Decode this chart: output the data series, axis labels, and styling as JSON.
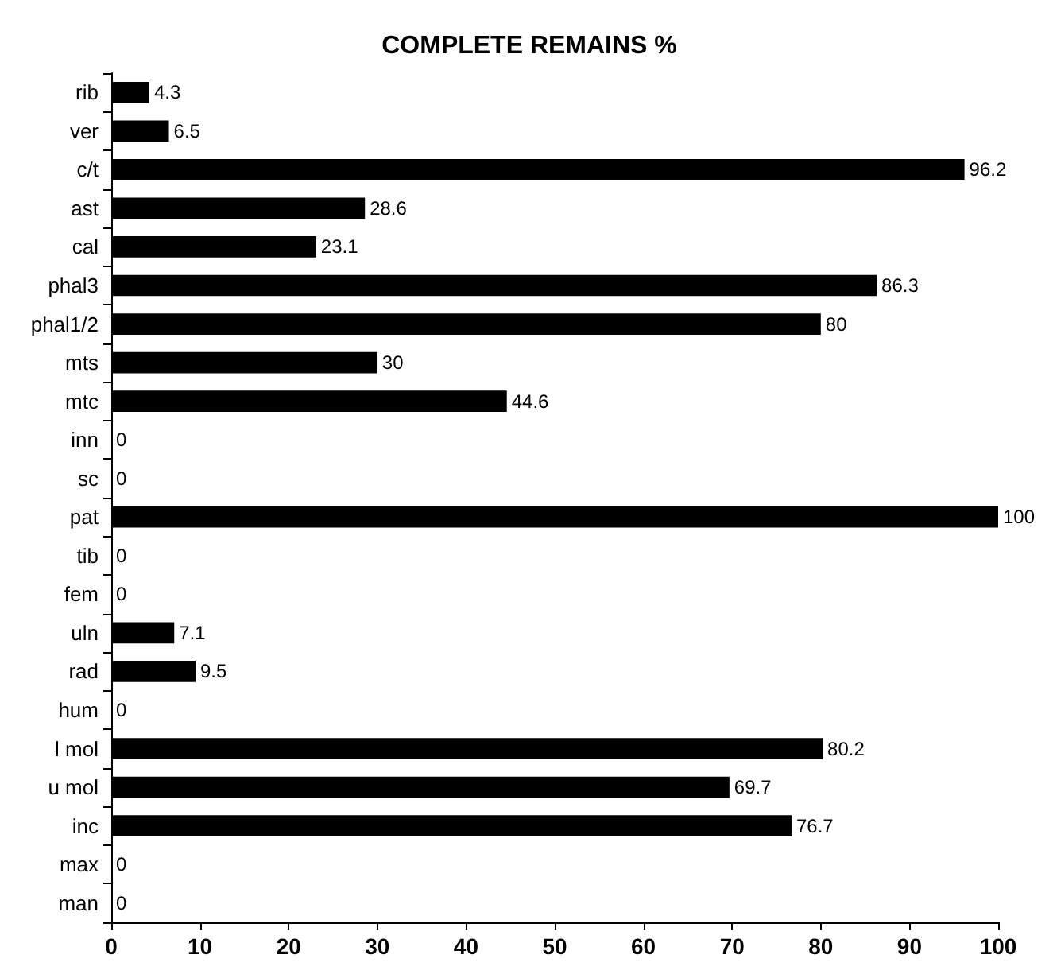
{
  "chart_data": {
    "type": "bar",
    "orientation": "horizontal",
    "title": "COMPLETE REMAINS %",
    "categories": [
      "rib",
      "ver",
      "c/t",
      "ast",
      "cal",
      "phal3",
      "phal1/2",
      "mts",
      "mtc",
      "inn",
      "sc",
      "pat",
      "tib",
      "fem",
      "uln",
      "rad",
      "hum",
      "l mol",
      "u mol",
      "inc",
      "max",
      "man"
    ],
    "values": [
      4.3,
      6.5,
      96.2,
      28.6,
      23.1,
      86.3,
      80,
      30,
      44.6,
      0,
      0,
      100,
      0,
      0,
      7.1,
      9.5,
      0,
      80.2,
      69.7,
      76.7,
      0,
      0
    ],
    "color": "#000000",
    "xlim": [
      0,
      100
    ],
    "xticks": [
      0,
      10,
      20,
      30,
      40,
      50,
      60,
      70,
      80,
      90,
      100
    ],
    "data_labels": true
  }
}
